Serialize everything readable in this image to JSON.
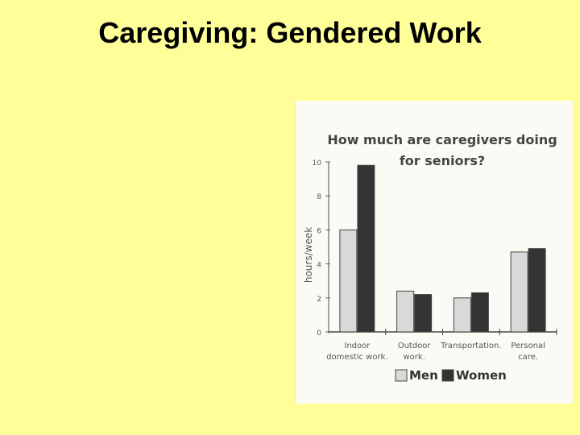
{
  "slide": {
    "title": "Caregiving: Gendered Work"
  },
  "chart_data": {
    "type": "bar",
    "title_lines": [
      "How much are caregivers doing",
      "for seniors?"
    ],
    "xlabel": "",
    "ylabel": "hours/week",
    "ylim": [
      0,
      10
    ],
    "yticks": [
      0,
      2,
      4,
      6,
      8,
      10
    ],
    "categories": [
      [
        "Indoor",
        "domestic work."
      ],
      [
        "Outdoor",
        "work."
      ],
      [
        "Transportation."
      ],
      [
        "Personal",
        "care."
      ]
    ],
    "series": [
      {
        "name": "Men",
        "values": [
          6.0,
          2.4,
          2.0,
          4.7
        ],
        "color": "#d9d9d9"
      },
      {
        "name": "Women",
        "values": [
          9.8,
          2.2,
          2.3,
          4.9
        ],
        "color": "#333333"
      }
    ],
    "legend": "bottom",
    "grid": false
  }
}
